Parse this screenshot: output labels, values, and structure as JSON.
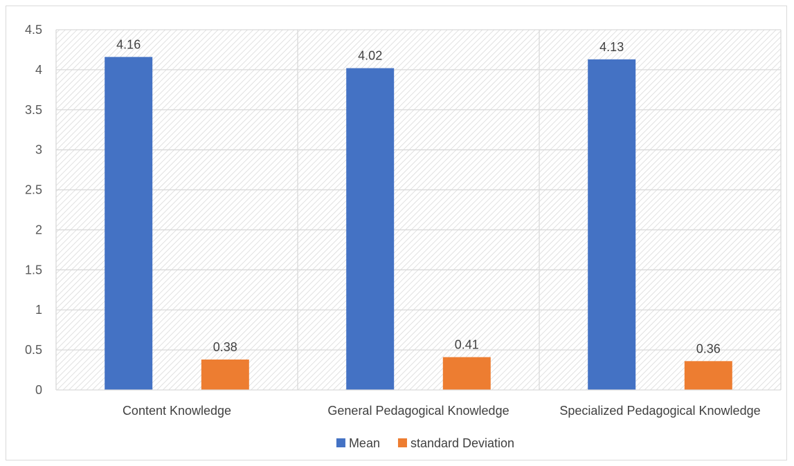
{
  "chart_data": {
    "type": "bar",
    "categories": [
      "Content Knowledge",
      "General Pedagogical Knowledge",
      "Specialized Pedagogical Knowledge"
    ],
    "series": [
      {
        "name": "Mean",
        "values": [
          4.16,
          4.02,
          4.13
        ],
        "color": "#4472C4"
      },
      {
        "name": "standard Deviation",
        "values": [
          0.38,
          0.41,
          0.36
        ],
        "color": "#ED7D31"
      }
    ],
    "ylim": [
      0,
      4.5
    ],
    "yticks": [
      "0",
      "0.5",
      "1",
      "1.5",
      "2",
      "2.5",
      "3",
      "3.5",
      "4",
      "4.5"
    ],
    "grid": true,
    "plot_background": "diagonal-hatch",
    "legend_position": "bottom",
    "data_labels": true
  }
}
